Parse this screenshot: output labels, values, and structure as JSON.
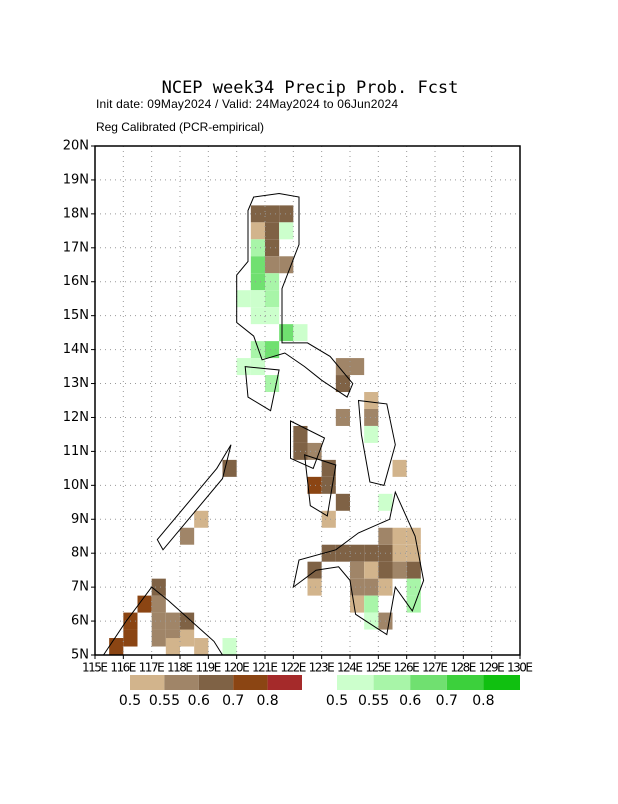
{
  "chart_data": {
    "type": "map",
    "title": "NCEP week34 Precip Prob. Fcst",
    "subtitle": "Init date: 09May2024 / Valid: 24May2024 to 06Jun2024",
    "subtitle2": "Reg Calibrated (PCR-empirical)",
    "xlim": [
      115,
      130
    ],
    "ylim": [
      5,
      20
    ],
    "grid": true,
    "xticks": [
      {
        "value": 115,
        "label": "115E"
      },
      {
        "value": 116,
        "label": "116E"
      },
      {
        "value": 117,
        "label": "117E"
      },
      {
        "value": 118,
        "label": "118E"
      },
      {
        "value": 119,
        "label": "119E"
      },
      {
        "value": 120,
        "label": "120E"
      },
      {
        "value": 121,
        "label": "121E"
      },
      {
        "value": 122,
        "label": "122E"
      },
      {
        "value": 123,
        "label": "123E"
      },
      {
        "value": 124,
        "label": "124E"
      },
      {
        "value": 125,
        "label": "125E"
      },
      {
        "value": 126,
        "label": "126E"
      },
      {
        "value": 127,
        "label": "127E"
      },
      {
        "value": 128,
        "label": "128E"
      },
      {
        "value": 129,
        "label": "129E"
      },
      {
        "value": 130,
        "label": "130E"
      }
    ],
    "yticks": [
      {
        "value": 5,
        "label": "5N"
      },
      {
        "value": 6,
        "label": "6N"
      },
      {
        "value": 7,
        "label": "7N"
      },
      {
        "value": 8,
        "label": "8N"
      },
      {
        "value": 9,
        "label": "9N"
      },
      {
        "value": 10,
        "label": "10N"
      },
      {
        "value": 11,
        "label": "11N"
      },
      {
        "value": 12,
        "label": "12N"
      },
      {
        "value": 13,
        "label": "13N"
      },
      {
        "value": 14,
        "label": "14N"
      },
      {
        "value": 15,
        "label": "15N"
      },
      {
        "value": 16,
        "label": "16N"
      },
      {
        "value": 17,
        "label": "17N"
      },
      {
        "value": 18,
        "label": "18N"
      },
      {
        "value": 19,
        "label": "19N"
      },
      {
        "value": 20,
        "label": "20N"
      }
    ],
    "cell_size": 0.5,
    "scales": [
      {
        "levels": [
          0.5,
          0.55,
          0.6,
          0.7,
          0.8
        ],
        "colors": [
          "#d2b48c",
          "#a08568",
          "#7f6245",
          "#8b4513",
          "#a52a2a"
        ],
        "cells": [
          [
            120.5,
            17.75,
            0.6
          ],
          [
            121,
            17.75,
            0.6
          ],
          [
            121.5,
            17.75,
            0.6
          ],
          [
            120.5,
            17.25,
            0.5
          ],
          [
            121,
            17.25,
            0.6
          ],
          [
            121,
            16.75,
            0.6
          ],
          [
            121,
            16.25,
            0.55
          ],
          [
            121.5,
            16.25,
            0.55
          ],
          [
            123.5,
            13.25,
            0.55
          ],
          [
            124,
            13.25,
            0.55
          ],
          [
            123.5,
            12.75,
            0.6
          ],
          [
            123.5,
            11.75,
            0.55
          ],
          [
            124.5,
            11.75,
            0.55
          ],
          [
            124.5,
            12.25,
            0.5
          ],
          [
            122,
            11.25,
            0.6
          ],
          [
            122,
            10.75,
            0.6
          ],
          [
            122.5,
            10.75,
            0.55
          ],
          [
            123,
            10.25,
            0.6
          ],
          [
            123,
            9.75,
            0.6
          ],
          [
            122.5,
            9.75,
            0.7
          ],
          [
            123.5,
            9.25,
            0.6
          ],
          [
            123,
            8.75,
            0.5
          ],
          [
            125.5,
            10.25,
            0.5
          ],
          [
            123,
            7.75,
            0.6
          ],
          [
            123.5,
            7.75,
            0.6
          ],
          [
            124,
            7.75,
            0.6
          ],
          [
            124.5,
            7.75,
            0.6
          ],
          [
            125,
            7.75,
            0.6
          ],
          [
            125.5,
            7.75,
            0.5
          ],
          [
            126,
            7.75,
            0.5
          ],
          [
            125.5,
            8.25,
            0.5
          ],
          [
            126,
            8.25,
            0.5
          ],
          [
            125,
            8.25,
            0.55
          ],
          [
            122.5,
            7.25,
            0.6
          ],
          [
            122.5,
            6.75,
            0.5
          ],
          [
            124,
            7.25,
            0.55
          ],
          [
            124.5,
            7.25,
            0.5
          ],
          [
            125,
            7.25,
            0.6
          ],
          [
            125.5,
            7.25,
            0.55
          ],
          [
            126,
            7.25,
            0.6
          ],
          [
            124,
            6.75,
            0.55
          ],
          [
            124.5,
            6.75,
            0.55
          ],
          [
            125,
            6.75,
            0.5
          ],
          [
            124,
            6.25,
            0.5
          ],
          [
            125,
            5.75,
            0.55
          ],
          [
            119.5,
            10.25,
            0.6
          ],
          [
            118.5,
            8.75,
            0.5
          ],
          [
            118,
            8.25,
            0.55
          ],
          [
            115.5,
            5,
            0.7
          ],
          [
            116,
            5.25,
            0.7
          ],
          [
            116,
            5.75,
            0.7
          ],
          [
            116.5,
            6.25,
            0.7
          ],
          [
            117,
            6.25,
            0.55
          ],
          [
            117,
            5.75,
            0.55
          ],
          [
            117,
            5.25,
            0.55
          ],
          [
            117,
            6.75,
            0.6
          ],
          [
            117.5,
            5.25,
            0.55
          ],
          [
            117.5,
            5.75,
            0.55
          ],
          [
            118,
            5.25,
            0.5
          ],
          [
            118,
            5.75,
            0.6
          ],
          [
            118.5,
            5,
            0.5
          ],
          [
            117.5,
            5,
            0.5
          ]
        ]
      },
      {
        "levels": [
          0.5,
          0.55,
          0.6,
          0.7,
          0.8
        ],
        "colors": [
          "#ccffcc",
          "#a8f5a8",
          "#70e070",
          "#3cd03c",
          "#10c010"
        ],
        "cells": [
          [
            120.5,
            16.75,
            0.55
          ],
          [
            120.5,
            16.25,
            0.6
          ],
          [
            120.5,
            15.75,
            0.6
          ],
          [
            121,
            15.75,
            0.55
          ],
          [
            120,
            15.25,
            0.5
          ],
          [
            120.5,
            15.25,
            0.5
          ],
          [
            121,
            15.25,
            0.55
          ],
          [
            120.5,
            14.75,
            0.5
          ],
          [
            121,
            14.75,
            0.5
          ],
          [
            121.5,
            14.25,
            0.6
          ],
          [
            122,
            14.25,
            0.5
          ],
          [
            120.5,
            13.75,
            0.55
          ],
          [
            121,
            13.75,
            0.6
          ],
          [
            120,
            13.25,
            0.5
          ],
          [
            120.5,
            13.25,
            0.5
          ],
          [
            121,
            12.75,
            0.55
          ],
          [
            121.5,
            17.25,
            0.5
          ],
          [
            124.5,
            11.25,
            0.5
          ],
          [
            125,
            9.25,
            0.5
          ],
          [
            124.5,
            6.25,
            0.55
          ],
          [
            124.5,
            5.75,
            0.5
          ],
          [
            126,
            6.25,
            0.55
          ],
          [
            126,
            6.75,
            0.55
          ],
          [
            119.5,
            5,
            0.5
          ]
        ]
      }
    ]
  }
}
